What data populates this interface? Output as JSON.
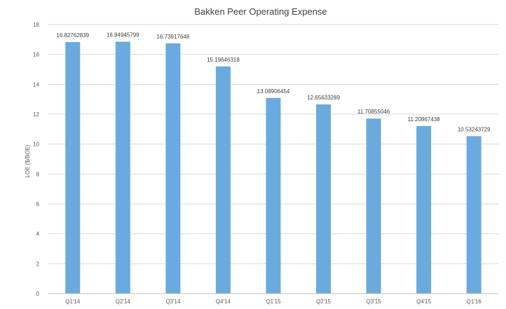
{
  "chart_data": {
    "type": "bar",
    "title": "Bakken Peer Operating Expense",
    "xlabel": "",
    "ylabel": "LOE ($/BOE)",
    "ylim": [
      0,
      18
    ],
    "ytick_step": 2,
    "yticks": [
      "0",
      "2",
      "4",
      "6",
      "8",
      "10",
      "12",
      "14",
      "16",
      "18"
    ],
    "grid": true,
    "legend": "none",
    "bar_color": "#6aaadf",
    "categories": [
      "Q1'14",
      "Q2'14",
      "Q3'14",
      "Q4'14",
      "Q1'15",
      "Q2'15",
      "Q3'15",
      "Q4'15",
      "Q1'16"
    ],
    "values": [
      16.82762839,
      16.84945799,
      16.73917648,
      15.19646318,
      13.08906454,
      12.65633289,
      11.70855046,
      11.20867438,
      10.53243729
    ],
    "data_labels": [
      "16.82762839",
      "16.84945799",
      "16.73917648",
      "15.19646318",
      "13.08906454",
      "12.65633289",
      "11.70855046",
      "11.20867438",
      "10.53243729"
    ]
  }
}
